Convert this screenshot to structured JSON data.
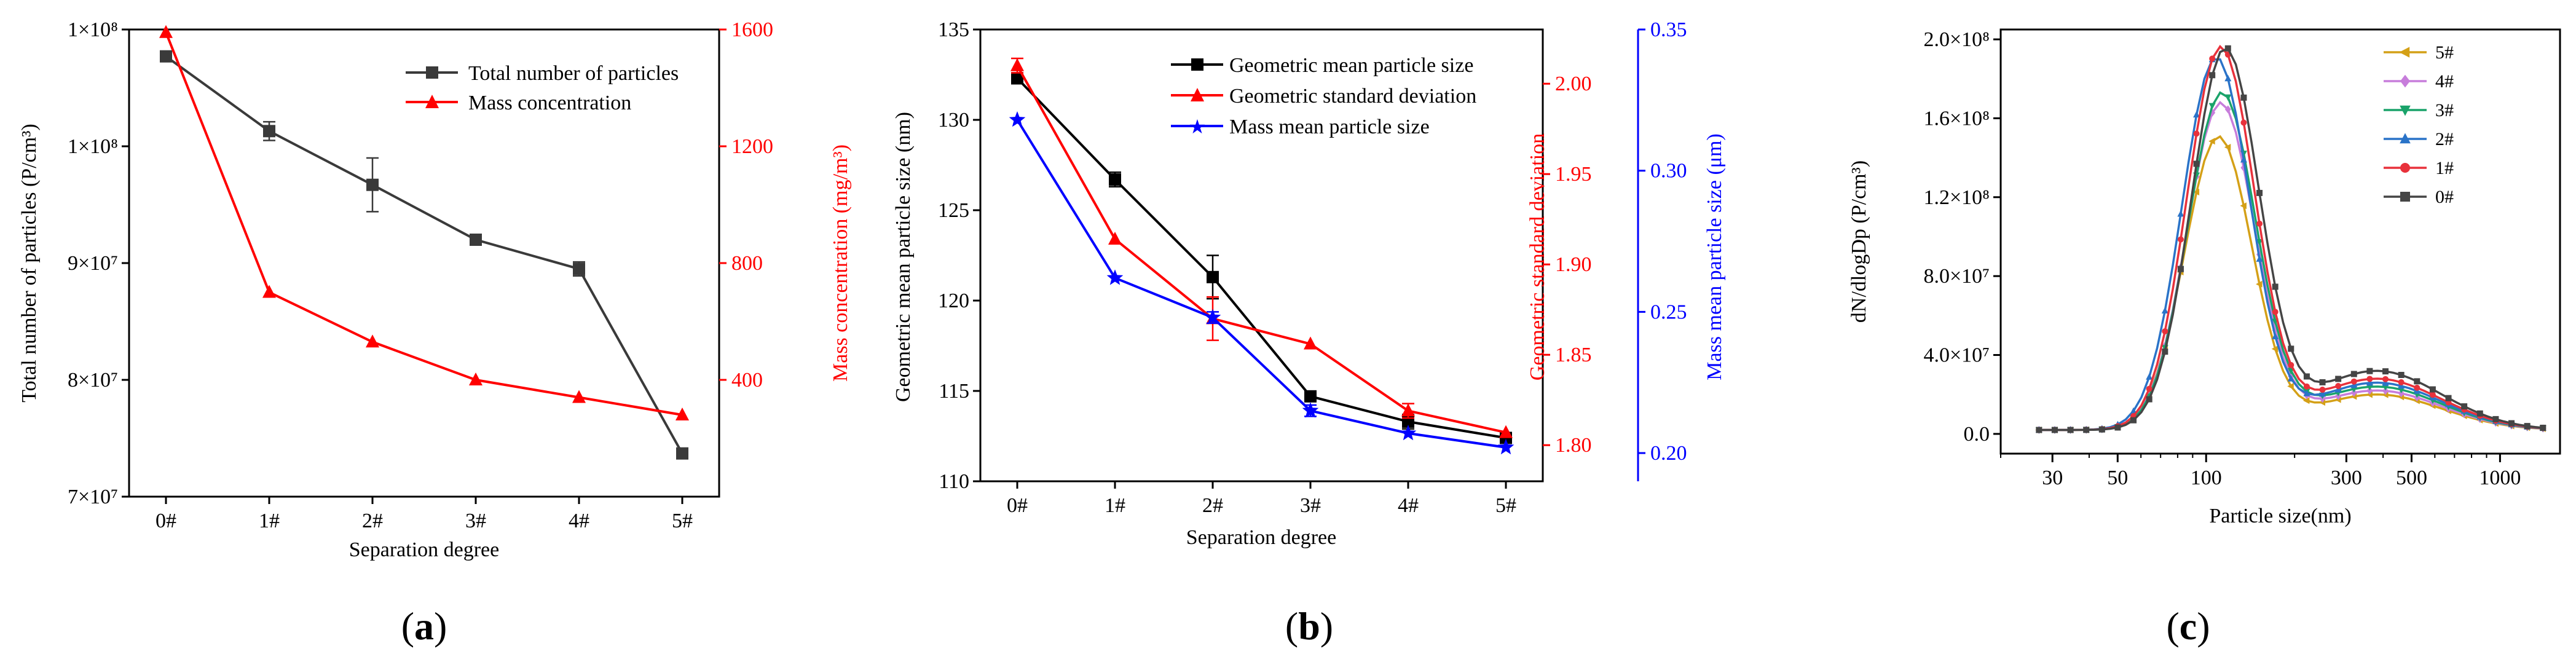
{
  "colors": {
    "black": "#000000",
    "darkgray": "#3a3a3a",
    "red": "#ff0000",
    "blue": "#0000ff",
    "s5": "#d4a017",
    "s4": "#c77ddb",
    "s3": "#1aa36a",
    "s2": "#2a73c8",
    "s1": "#e8313b",
    "s0": "#454545"
  },
  "chart_data": [
    {
      "id": "a",
      "panel_label_open": "(",
      "panel_label_letter": "a",
      "panel_label_close": ")",
      "type": "line",
      "xlabel": "Separation degree",
      "categories": [
        "0#",
        "1#",
        "2#",
        "3#",
        "4#",
        "5#"
      ],
      "left_axis": {
        "label": "Total number of particles (P/cm³)",
        "ylim": [
          70000000,
          110000000
        ],
        "ticks": [
          {
            "value": 70000000,
            "label": "7×10⁷"
          },
          {
            "value": 80000000,
            "label": "8×10⁷"
          },
          {
            "value": 90000000,
            "label": "9×10⁷"
          },
          {
            "value": 100000000,
            "label": "1×10⁸"
          },
          {
            "value": 110000000,
            "label": "1×10⁸"
          }
        ]
      },
      "right_axis": {
        "label": "Mass concentration (mg/m³)",
        "ylim": [
          0,
          1600
        ],
        "ticks": [
          {
            "value": 400,
            "label": "400"
          },
          {
            "value": 800,
            "label": "800"
          },
          {
            "value": 1200,
            "label": "1200"
          },
          {
            "value": 1600,
            "label": "1600"
          }
        ]
      },
      "series": [
        {
          "name": "Total number of particles",
          "axis": "left",
          "color": "#3a3a3a",
          "marker": "square",
          "values": [
            107700000,
            101300000,
            96700000,
            92000000,
            89500000,
            73700000
          ],
          "errors": [
            0,
            800000,
            2300000,
            0,
            600000,
            400000
          ]
        },
        {
          "name": "Mass concentration",
          "axis": "right",
          "color": "#ff0000",
          "marker": "triangle",
          "values": [
            1590,
            700,
            530,
            400,
            340,
            280
          ],
          "errors": [
            0,
            0,
            0,
            0,
            0,
            0
          ]
        }
      ]
    },
    {
      "id": "b",
      "panel_label_open": "(",
      "panel_label_letter": "b",
      "panel_label_close": ")",
      "type": "line",
      "xlabel": "Separation degree",
      "categories": [
        "0#",
        "1#",
        "2#",
        "3#",
        "4#",
        "5#"
      ],
      "left_axis": {
        "label": "Geometric mean particle size (nm)",
        "ylim": [
          110,
          135
        ],
        "ticks": [
          {
            "value": 110,
            "label": "110"
          },
          {
            "value": 115,
            "label": "115"
          },
          {
            "value": 120,
            "label": "120"
          },
          {
            "value": 125,
            "label": "125"
          },
          {
            "value": 130,
            "label": "130"
          },
          {
            "value": 135,
            "label": "135"
          }
        ]
      },
      "right_axis": {
        "label": "Geometric standard deviation",
        "ylim": [
          1.78,
          2.03
        ],
        "ticks": [
          {
            "value": 1.8,
            "label": "1.80"
          },
          {
            "value": 1.85,
            "label": "1.85"
          },
          {
            "value": 1.9,
            "label": "1.90"
          },
          {
            "value": 1.95,
            "label": "1.95"
          },
          {
            "value": 2.0,
            "label": "2.00"
          }
        ]
      },
      "right_axis2": {
        "label": "Mass mean particle size (μm)",
        "ylim": [
          0.19,
          0.35
        ],
        "ticks": [
          {
            "value": 0.2,
            "label": "0.20"
          },
          {
            "value": 0.25,
            "label": "0.25"
          },
          {
            "value": 0.3,
            "label": "0.30"
          },
          {
            "value": 0.35,
            "label": "0.35"
          }
        ]
      },
      "series": [
        {
          "name": "Geometric mean particle size",
          "axis": "left",
          "color": "#000000",
          "marker": "square",
          "values": [
            132.3,
            126.7,
            121.3,
            114.7,
            113.3,
            112.4
          ],
          "errors": [
            0.3,
            0.4,
            1.2,
            0,
            0.4,
            0.2
          ]
        },
        {
          "name": "Geometric standard deviation",
          "axis": "right",
          "color": "#ff0000",
          "marker": "triangle",
          "values": [
            2.01,
            1.914,
            1.87,
            1.856,
            1.819,
            1.807
          ],
          "errors": [
            0.004,
            0,
            0.012,
            0,
            0.004,
            0
          ]
        },
        {
          "name": "Mass mean particle size",
          "axis": "right2",
          "color": "#0000ff",
          "marker": "star",
          "values": [
            0.318,
            0.262,
            0.248,
            0.215,
            0.207,
            0.202
          ],
          "errors": [
            0,
            0,
            0.002,
            0.002,
            0,
            0
          ]
        }
      ]
    },
    {
      "id": "c",
      "panel_label_open": "(",
      "panel_label_letter": "c",
      "panel_label_close": ")",
      "type": "line",
      "xlabel": "Particle size(nm)",
      "ylabel": "dN/dlogDp (P/cm³)",
      "xscale": "log",
      "xlim": [
        20,
        1600
      ],
      "ylim": [
        -10000000,
        205000000
      ],
      "xticks": [
        {
          "value": 30,
          "label": "30"
        },
        {
          "value": 50,
          "label": "50"
        },
        {
          "value": 100,
          "label": "100"
        },
        {
          "value": 300,
          "label": "300"
        },
        {
          "value": 500,
          "label": "500"
        },
        {
          "value": 1000,
          "label": "1000"
        }
      ],
      "yticks": [
        {
          "value": 0,
          "label": "0.0"
        },
        {
          "value": 40000000,
          "label": "4.0×10⁷"
        },
        {
          "value": 80000000,
          "label": "8.0×10⁷"
        },
        {
          "value": 120000000,
          "label": "1.2×10⁸"
        },
        {
          "value": 160000000,
          "label": "1.6×10⁸"
        },
        {
          "value": 200000000,
          "label": "2.0×10⁸"
        }
      ],
      "series": [
        {
          "name": "5#",
          "color": "#d4a017",
          "marker": "triangle-left",
          "peak": 148000000,
          "peak_x": 110,
          "shoulder": 18000000
        },
        {
          "name": "4#",
          "color": "#c77ddb",
          "marker": "diamond",
          "peak": 165000000,
          "peak_x": 112,
          "shoulder": 20000000
        },
        {
          "name": "3#",
          "color": "#1aa36a",
          "marker": "triangle-down",
          "peak": 170000000,
          "peak_x": 113,
          "shoulder": 22000000
        },
        {
          "name": "2#",
          "color": "#2a73c8",
          "marker": "triangle",
          "peak": 188000000,
          "peak_x": 108,
          "shoulder": 24000000
        },
        {
          "name": "1#",
          "color": "#e8313b",
          "marker": "circle",
          "peak": 193000000,
          "peak_x": 112,
          "shoulder": 26000000
        },
        {
          "name": "0#",
          "color": "#454545",
          "marker": "square",
          "peak": 192000000,
          "peak_x": 116,
          "shoulder": 30000000
        }
      ]
    }
  ]
}
